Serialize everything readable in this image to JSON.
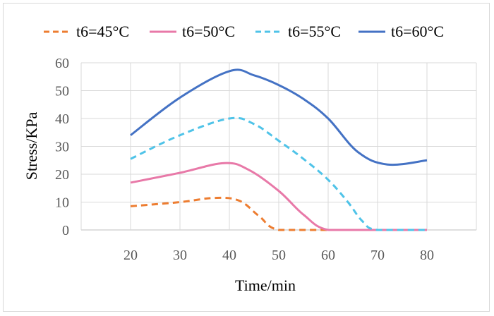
{
  "chart_data": {
    "type": "line",
    "title": "",
    "xlabel": "Time/min",
    "ylabel": "Stress/KPa",
    "xlim": [
      10,
      90
    ],
    "ylim": [
      0,
      60
    ],
    "x_ticks": [
      20,
      30,
      40,
      50,
      60,
      70,
      80
    ],
    "y_ticks": [
      0,
      10,
      20,
      30,
      40,
      50,
      60
    ],
    "grid": true,
    "legend_position": "top",
    "series": [
      {
        "name": "t6=45°C",
        "color": "#ED7D31",
        "dash": "dashed",
        "x": [
          20,
          30,
          37,
          42,
          46,
          50,
          60,
          70,
          80
        ],
        "values": [
          8.5,
          10,
          11.5,
          10.5,
          5,
          0,
          0,
          0,
          0
        ]
      },
      {
        "name": "t6=50°C",
        "color": "#E879A8",
        "dash": "solid",
        "x": [
          20,
          30,
          39,
          44,
          50,
          55,
          60,
          70,
          80
        ],
        "values": [
          17,
          20.5,
          24,
          21.5,
          14,
          5.5,
          0,
          0,
          0
        ]
      },
      {
        "name": "t6=55°C",
        "color": "#4FC3E8",
        "dash": "dashed",
        "x": [
          20,
          30,
          40,
          45,
          50,
          55,
          60,
          64,
          67,
          70,
          80
        ],
        "values": [
          25.5,
          34,
          40,
          38,
          32,
          25.5,
          18,
          10,
          3,
          0,
          0
        ]
      },
      {
        "name": "t6=60°C",
        "color": "#4472C4",
        "dash": "solid",
        "x": [
          20,
          30,
          40,
          45,
          50,
          55,
          60,
          66,
          72,
          80
        ],
        "values": [
          34,
          47.5,
          57,
          55.5,
          52,
          47,
          40,
          28,
          23.5,
          25
        ]
      }
    ]
  }
}
